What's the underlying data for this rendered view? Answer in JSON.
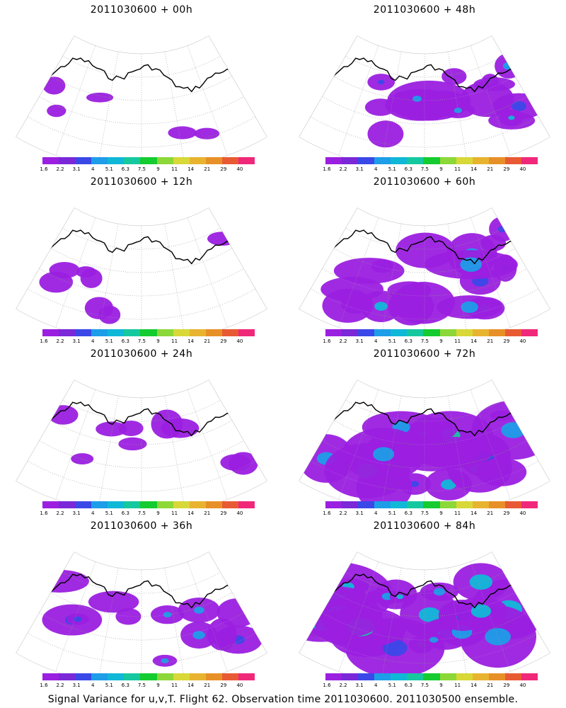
{
  "footer": "Signal Variance for u,v,T. Flight 62. Observation time 2011030600. 2011030500 ensemble.",
  "colorbar": {
    "colors": [
      "#9b1fe0",
      "#7a28d8",
      "#3b48e8",
      "#1e9de8",
      "#10b8d8",
      "#16c8a0",
      "#14cc30",
      "#8cd838",
      "#d8d838",
      "#e8b430",
      "#e89028",
      "#e85a34",
      "#f0287a"
    ],
    "labels": [
      "1.6",
      "2.2",
      "3.1",
      "4",
      "5.1",
      "6.3",
      "7.5",
      "9",
      "11",
      "14",
      "21",
      "29",
      "40"
    ]
  },
  "panels": [
    {
      "title": "2011030600 + 00h",
      "level": 0.05
    },
    {
      "title": "2011030600 + 48h",
      "level": 0.55
    },
    {
      "title": "2011030600 + 12h",
      "level": 0.12
    },
    {
      "title": "2011030600 + 60h",
      "level": 0.65
    },
    {
      "title": "2011030600 + 24h",
      "level": 0.22
    },
    {
      "title": "2011030600 + 72h",
      "level": 0.75
    },
    {
      "title": "2011030600 + 36h",
      "level": 0.35
    },
    {
      "title": "2011030600 + 84h",
      "level": 0.9
    }
  ]
}
